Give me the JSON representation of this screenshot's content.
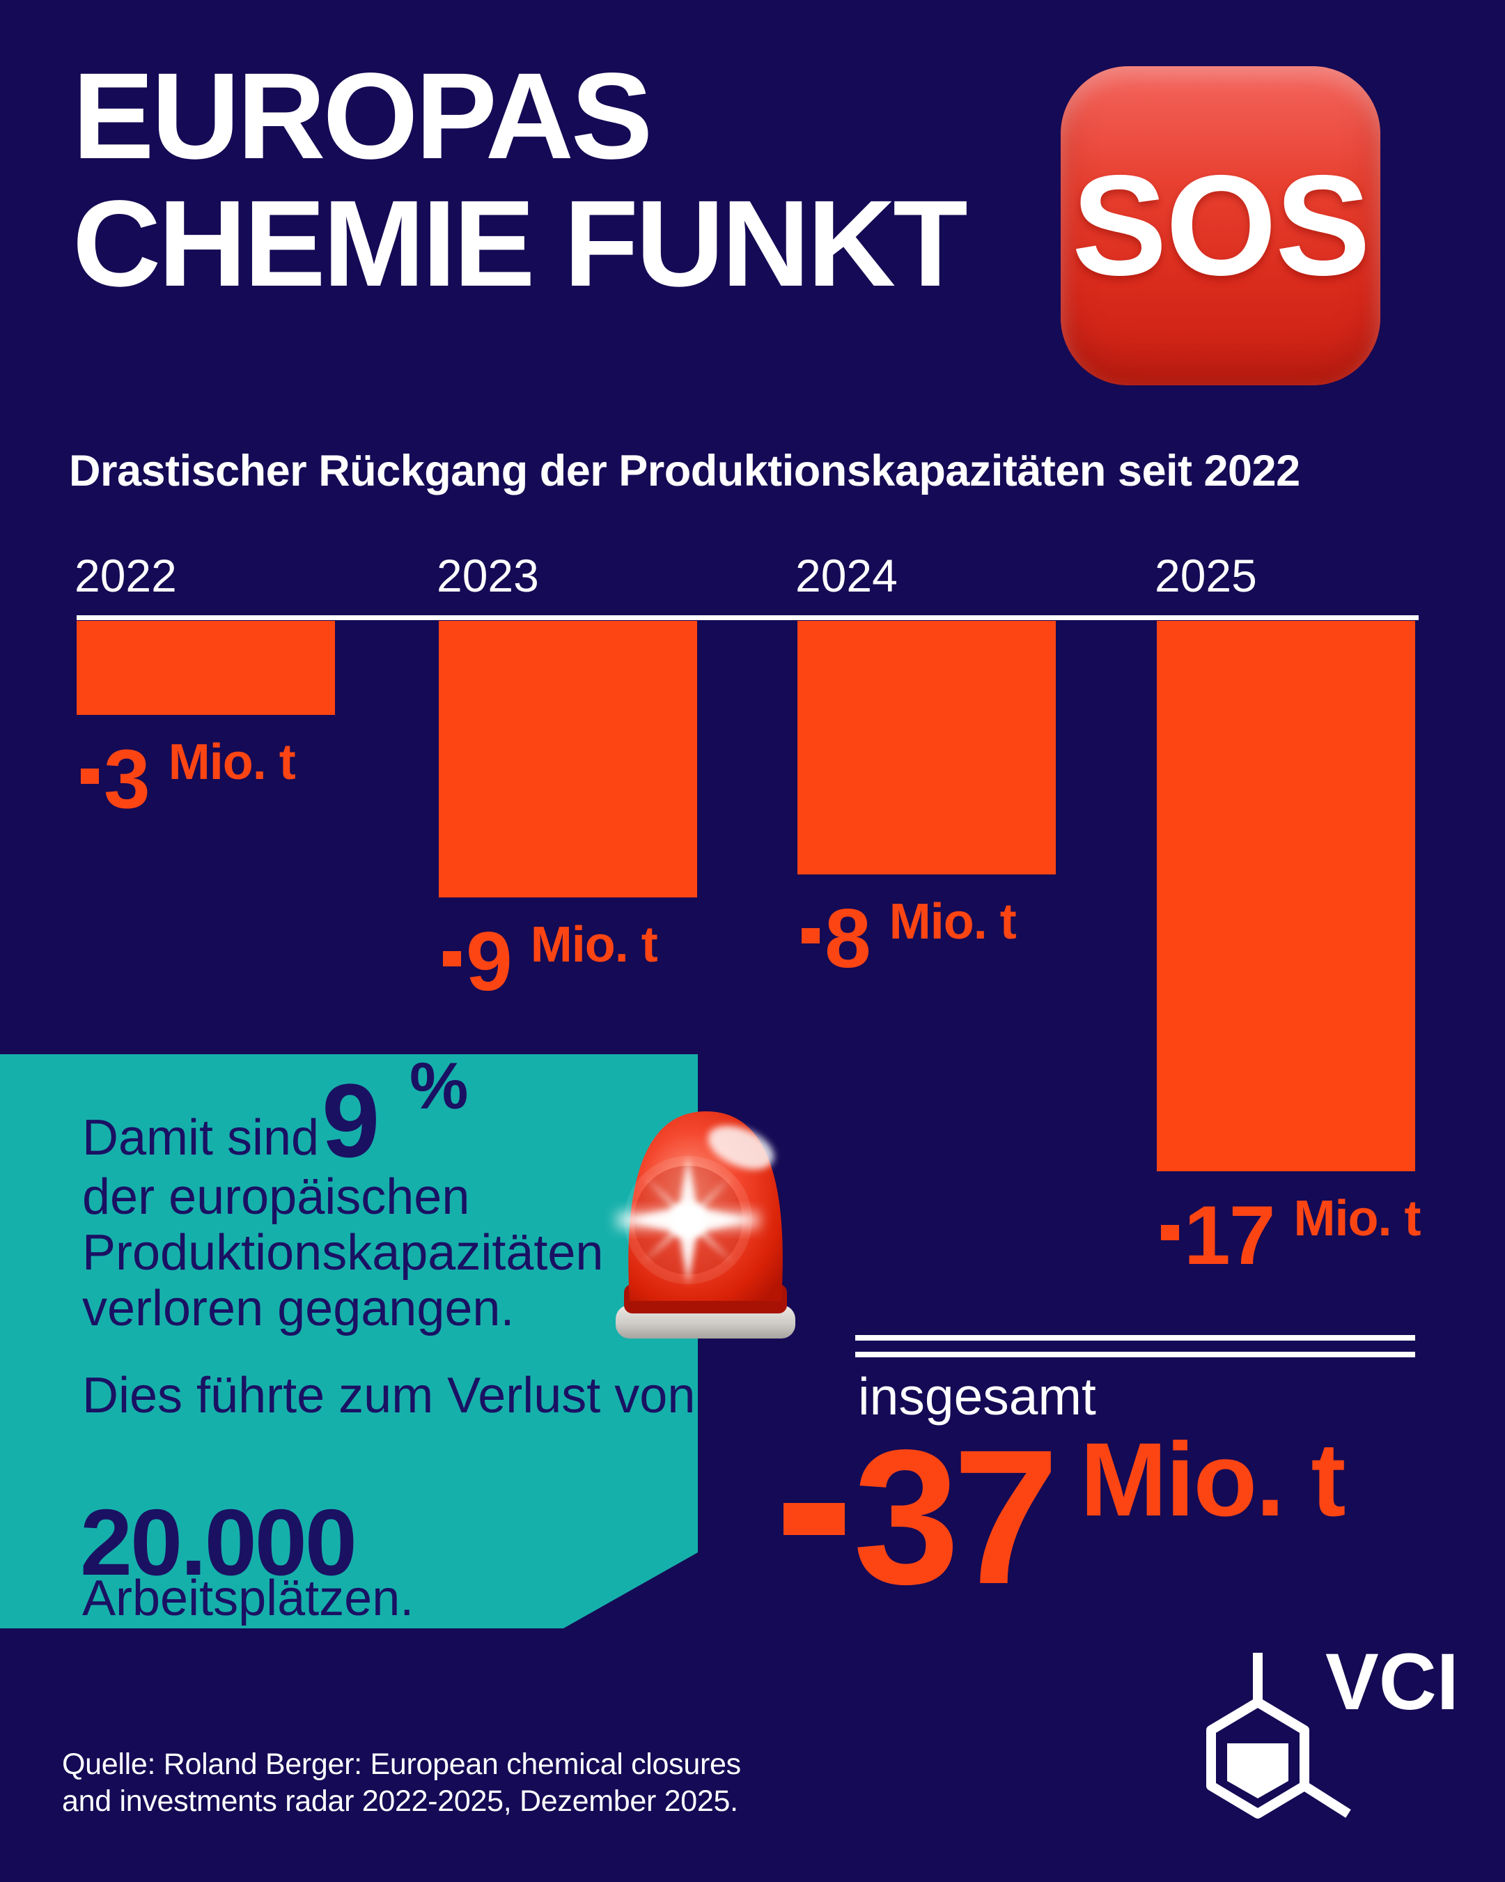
{
  "header": {
    "title_line1": "EUROPAS",
    "title_line2": "CHEMIE FUNKT",
    "sos_label": "SOS"
  },
  "subtitle": "Drastischer Rückgang der Produktionskapazitäten seit 2022",
  "chart_data": {
    "type": "bar",
    "title": "Drastischer Rückgang der Produktionskapazitäten seit 2022",
    "categories": [
      "2022",
      "2023",
      "2024",
      "2025"
    ],
    "values": [
      -3,
      -9,
      -8,
      -17
    ],
    "unit": "Mio. t",
    "orientation": "columns-hanging-below-baseline",
    "bar_color": "#fc4513",
    "baseline_color": "#ffffff",
    "value_labels": [
      "-3 Mio. t",
      "-9 Mio. t",
      "-8 Mio. t",
      "-17 Mio. t"
    ],
    "total": {
      "label": "insgesamt",
      "value": -37,
      "display_number": "37",
      "unit": "Mio. t",
      "display": "-37 Mio. t"
    }
  },
  "callout": {
    "background_color": "#16b0ab",
    "text_color": "#1a1163",
    "line1": "Damit sind",
    "highlight_number": "9",
    "highlight_percent": "%",
    "line2": "der europäischen",
    "line3": "Produktionskapazitäten",
    "line4": "verloren gegangen.",
    "line5": "Dies führte zum Verlust von",
    "big_number": "20.000",
    "line6": "Arbeitsplätzen."
  },
  "source": {
    "line1": "Quelle: Roland Berger: European chemical closures",
    "line2": "and investments radar 2022-2025, Dezember 2025."
  },
  "logo": {
    "label": "VCI"
  },
  "icons": {
    "sos": "sos-square-emoji",
    "siren": "police-car-light-emoji",
    "logo_mark": "benzene-ring-icon"
  },
  "colors": {
    "background": "#150a55",
    "accent_orange": "#fc4513",
    "teal": "#16b0ab",
    "navy_text": "#1a1163",
    "white": "#ffffff"
  }
}
